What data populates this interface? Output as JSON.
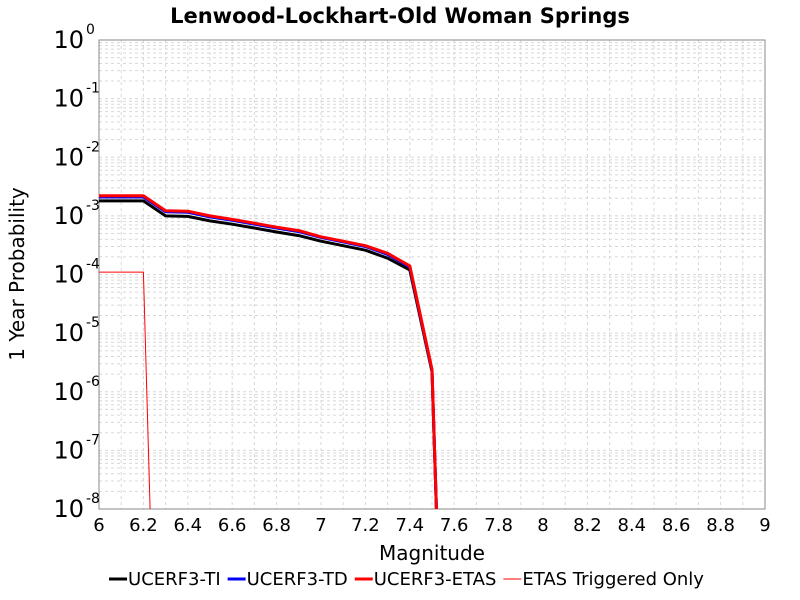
{
  "chart_data": {
    "type": "line",
    "title": "Lenwood-Lockhart-Old Woman Springs",
    "xlabel": "Magnitude",
    "ylabel": "1 Year Probability",
    "xlim": [
      6,
      9
    ],
    "ylim": [
      1e-08,
      1
    ],
    "yscale": "log",
    "grid": true,
    "legend_position": "bottom",
    "x_ticks": [
      "6",
      "6.2",
      "6.4",
      "6.6",
      "6.8",
      "7",
      "7.2",
      "7.4",
      "7.6",
      "7.8",
      "8",
      "8.2",
      "8.4",
      "8.6",
      "8.8",
      "9"
    ],
    "y_ticks": [
      {
        "base": "10",
        "exp": "0"
      },
      {
        "base": "10",
        "exp": "-1"
      },
      {
        "base": "10",
        "exp": "-2"
      },
      {
        "base": "10",
        "exp": "-3"
      },
      {
        "base": "10",
        "exp": "-4"
      },
      {
        "base": "10",
        "exp": "-5"
      },
      {
        "base": "10",
        "exp": "-6"
      },
      {
        "base": "10",
        "exp": "-7"
      },
      {
        "base": "10",
        "exp": "-8"
      }
    ],
    "series": [
      {
        "name": "UCERF3-TI",
        "color": "#000000",
        "width": 3,
        "x": [
          6.0,
          6.2,
          6.3,
          6.4,
          6.5,
          6.6,
          6.7,
          6.8,
          6.9,
          7.0,
          7.1,
          7.2,
          7.3,
          7.4,
          7.5,
          7.52
        ],
        "y": [
          0.0018,
          0.0018,
          0.001,
          0.00098,
          0.00082,
          0.00072,
          0.00062,
          0.00053,
          0.00046,
          0.00037,
          0.00031,
          0.00026,
          0.00019,
          0.00012,
          2.2e-06,
          1e-08
        ]
      },
      {
        "name": "UCERF3-TD",
        "color": "#0000ff",
        "width": 3,
        "x": [
          6.0,
          6.2,
          6.3,
          6.4,
          6.5,
          6.6,
          6.7,
          6.8,
          6.9,
          7.0,
          7.1,
          7.2,
          7.3,
          7.4,
          7.5,
          7.52
        ],
        "y": [
          0.0021,
          0.0021,
          0.00118,
          0.00115,
          0.00096,
          0.00084,
          0.00072,
          0.00062,
          0.00054,
          0.00043,
          0.00036,
          0.0003,
          0.00022,
          0.000135,
          2.3e-06,
          1e-08
        ]
      },
      {
        "name": "UCERF3-ETAS",
        "color": "#ff0000",
        "width": 3,
        "x": [
          6.0,
          6.2,
          6.3,
          6.4,
          6.5,
          6.6,
          6.7,
          6.8,
          6.9,
          7.0,
          7.1,
          7.2,
          7.3,
          7.4,
          7.5,
          7.52
        ],
        "y": [
          0.0022,
          0.0022,
          0.00122,
          0.0012,
          0.001,
          0.00087,
          0.00075,
          0.00064,
          0.00056,
          0.00044,
          0.00037,
          0.00031,
          0.00023,
          0.00014,
          2.4e-06,
          1e-08
        ]
      },
      {
        "name": "ETAS Triggered Only",
        "color": "#ff0000",
        "width": 1,
        "x": [
          6.0,
          6.2,
          6.23
        ],
        "y": [
          0.00011,
          0.00011,
          1e-08
        ]
      }
    ]
  }
}
